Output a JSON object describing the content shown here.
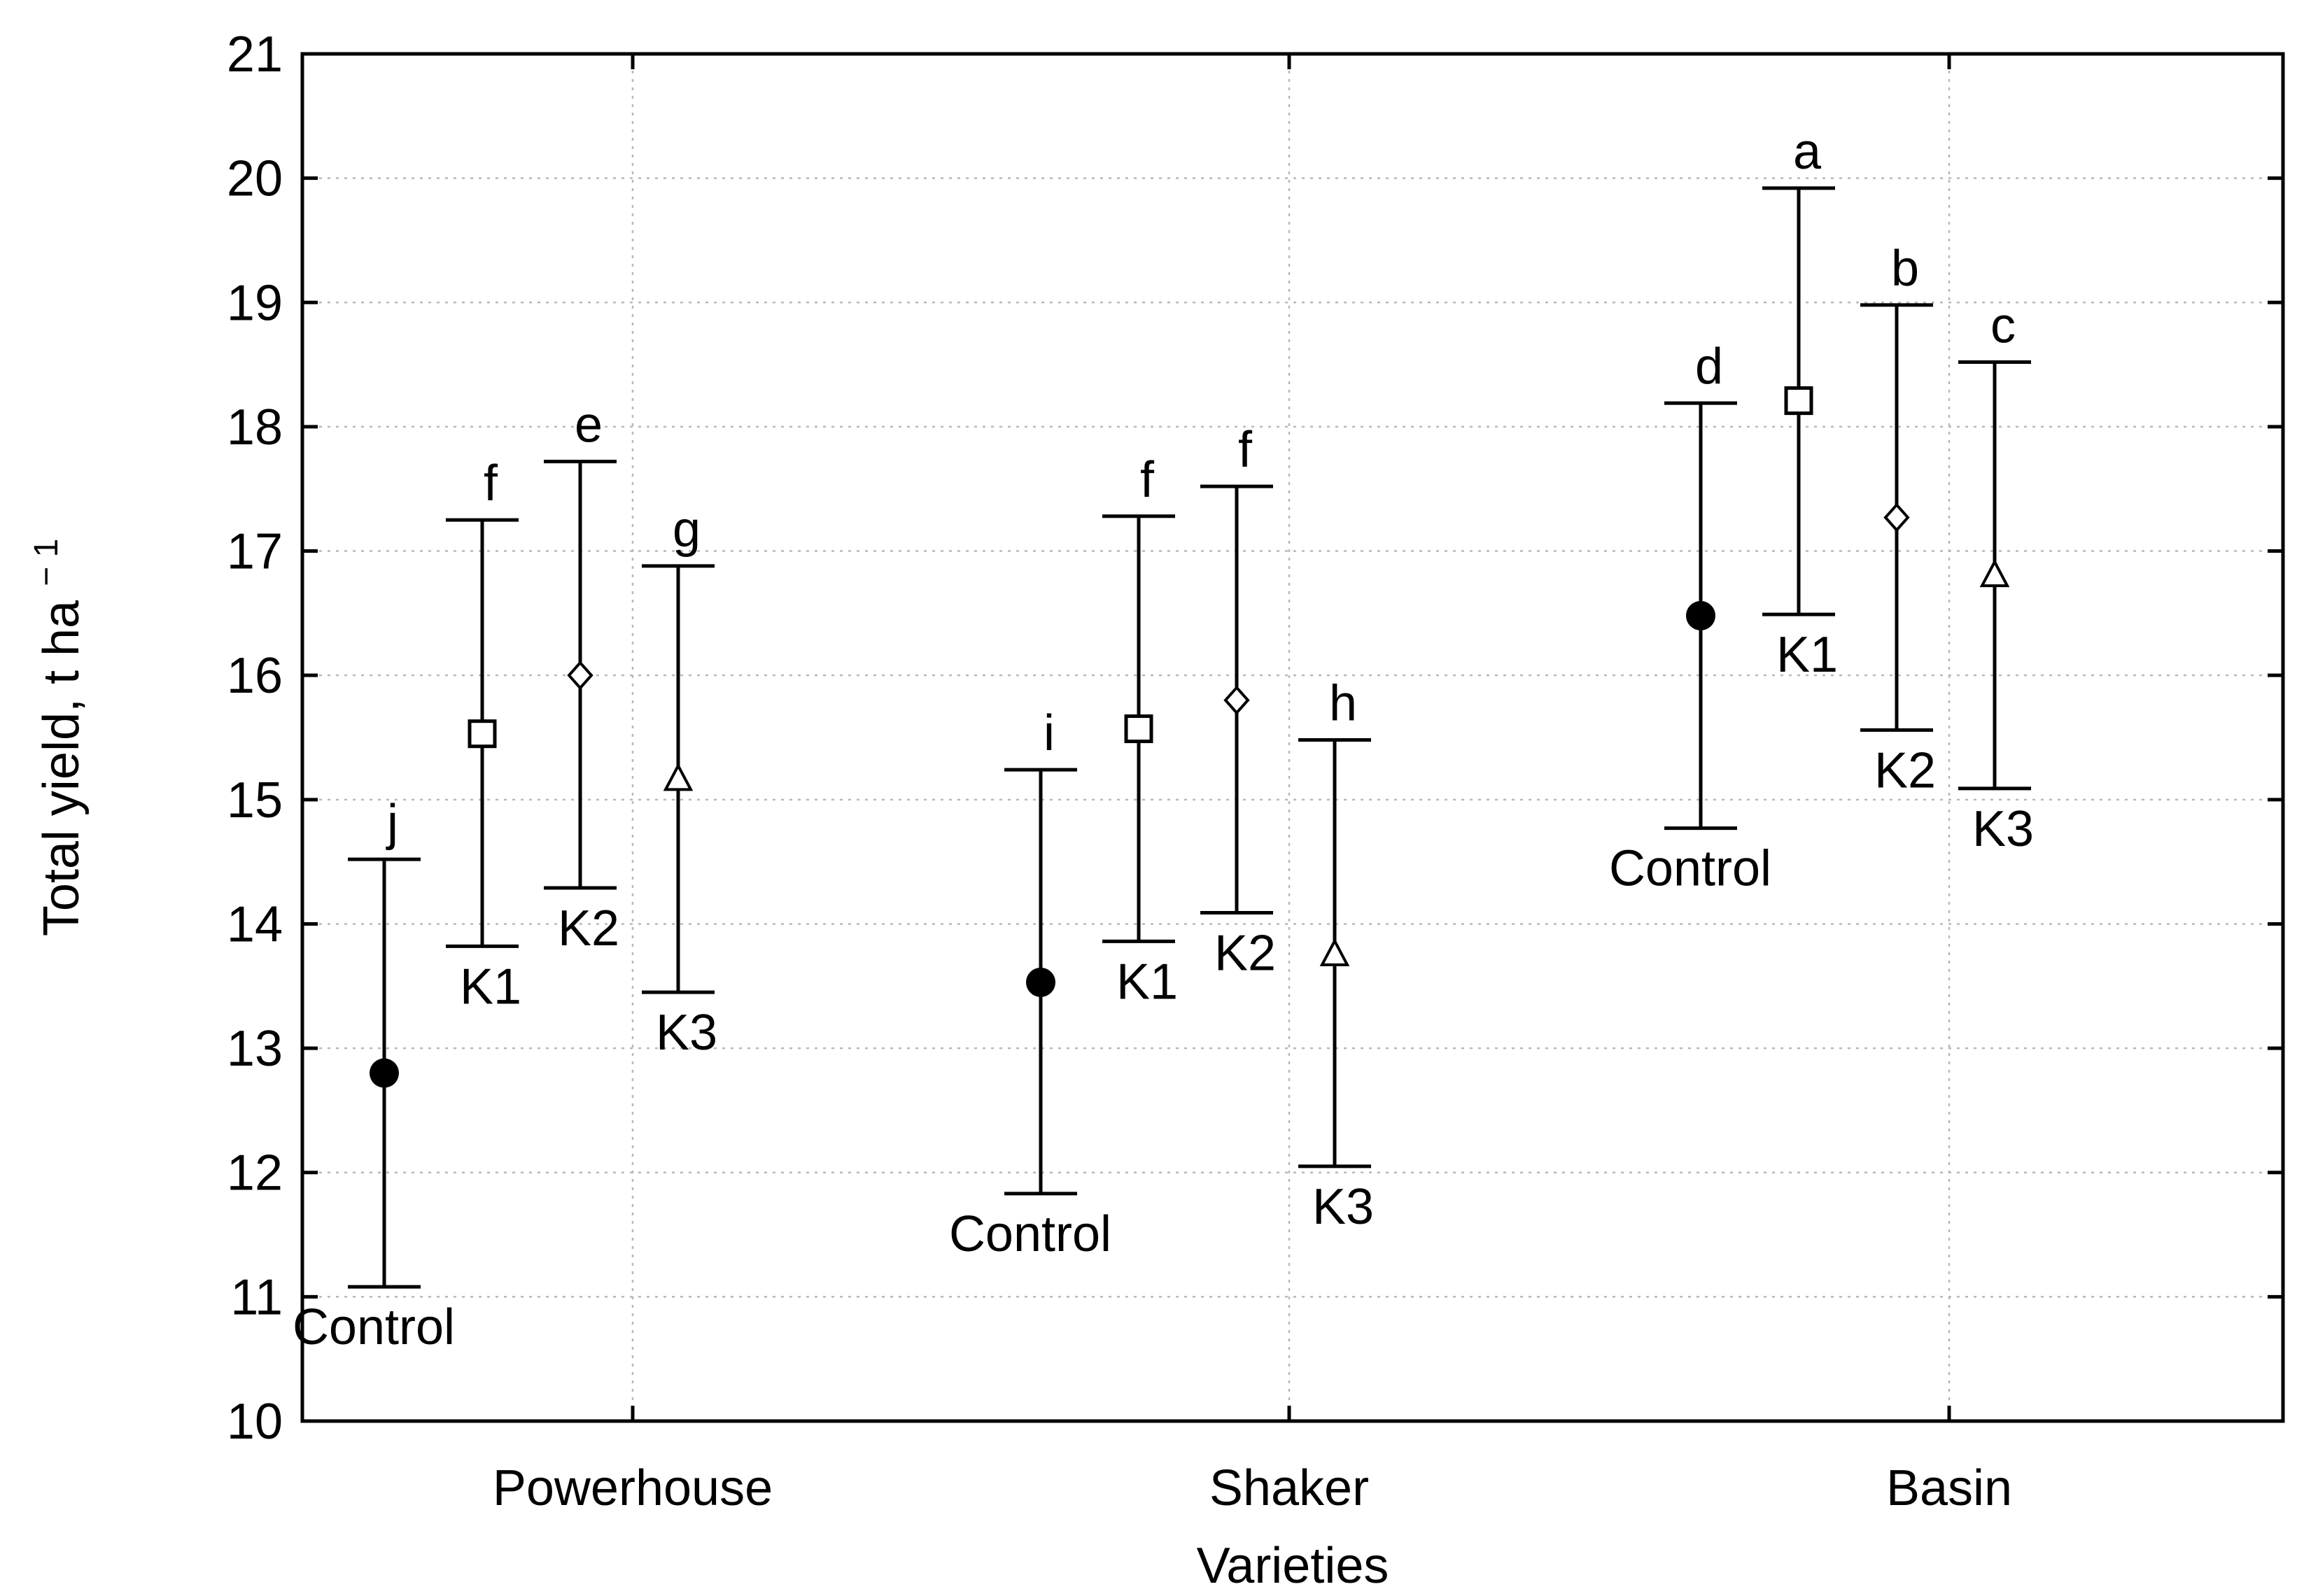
{
  "chart_data": {
    "type": "scatter",
    "subtype": "mean-with-error-bars",
    "title": "",
    "xlabel": "Varieties",
    "ylabel": "Total yield, t ha",
    "ylabel_superscript": "− 1",
    "ylim": [
      10,
      21
    ],
    "yticks": [
      "10",
      "11",
      "12",
      "13",
      "14",
      "15",
      "16",
      "17",
      "18",
      "19",
      "20",
      "21"
    ],
    "categories": [
      "Powerhouse",
      "Shaker",
      "Basin"
    ],
    "grid": "dotted",
    "series": [
      {
        "name": "Control",
        "marker": "filled-circle",
        "offset": -1,
        "values": [
          12.8,
          13.53,
          16.48
        ],
        "lower": [
          11.08,
          11.83,
          14.77
        ],
        "upper": [
          14.52,
          15.24,
          18.19
        ],
        "letters": [
          "j",
          "i",
          "d"
        ]
      },
      {
        "name": "K1",
        "marker": "open-square",
        "offset": 0,
        "values": [
          15.53,
          15.57,
          18.21
        ],
        "lower": [
          13.82,
          13.86,
          16.49
        ],
        "upper": [
          17.25,
          17.28,
          19.92
        ],
        "letters": [
          "f",
          "f",
          "a"
        ]
      },
      {
        "name": "K2",
        "marker": "open-diamond",
        "offset": 1,
        "values": [
          16.0,
          15.8,
          17.27
        ],
        "lower": [
          14.29,
          14.09,
          15.56
        ],
        "upper": [
          17.72,
          17.52,
          18.98
        ],
        "letters": [
          "e",
          "f",
          "b"
        ]
      },
      {
        "name": "K3",
        "marker": "open-triangle",
        "offset": 2,
        "values": [
          15.16,
          13.75,
          16.8
        ],
        "lower": [
          13.45,
          12.05,
          15.09
        ],
        "upper": [
          16.88,
          15.48,
          18.52
        ],
        "letters": [
          "g",
          "h",
          "c"
        ]
      }
    ]
  }
}
